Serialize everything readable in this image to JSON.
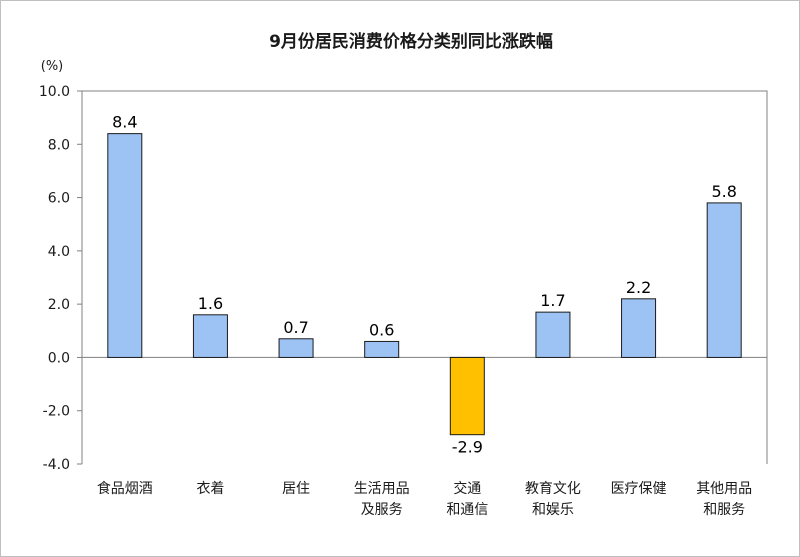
{
  "chart_data": {
    "type": "bar",
    "title": "9月份居民消费价格分类别同比涨跌幅",
    "ylabel": "(%)",
    "xlabel": "",
    "ylim": [
      -4.0,
      10.0
    ],
    "yticks": [
      "10.0",
      "8.0",
      "6.0",
      "4.0",
      "2.0",
      "0.0",
      "-2.0",
      "-4.0"
    ],
    "categories": [
      [
        "食品烟酒"
      ],
      [
        "衣着"
      ],
      [
        "居住"
      ],
      [
        "生活用品",
        "及服务"
      ],
      [
        "交通",
        "和通信"
      ],
      [
        "教育文化",
        "和娱乐"
      ],
      [
        "医疗保健"
      ],
      [
        "其他用品",
        "和服务"
      ]
    ],
    "values": [
      8.4,
      1.6,
      0.7,
      0.6,
      -2.9,
      1.7,
      2.2,
      5.8
    ],
    "data_labels": [
      "8.4",
      "1.6",
      "0.7",
      "0.6",
      "-2.9",
      "1.7",
      "2.2",
      "5.8"
    ],
    "grid": false,
    "legend": "none",
    "colors": {
      "positive": "#9dc3f5",
      "negative": "#ffc000",
      "bar_outline": "#1a1a1a",
      "axis": "#808080"
    }
  }
}
